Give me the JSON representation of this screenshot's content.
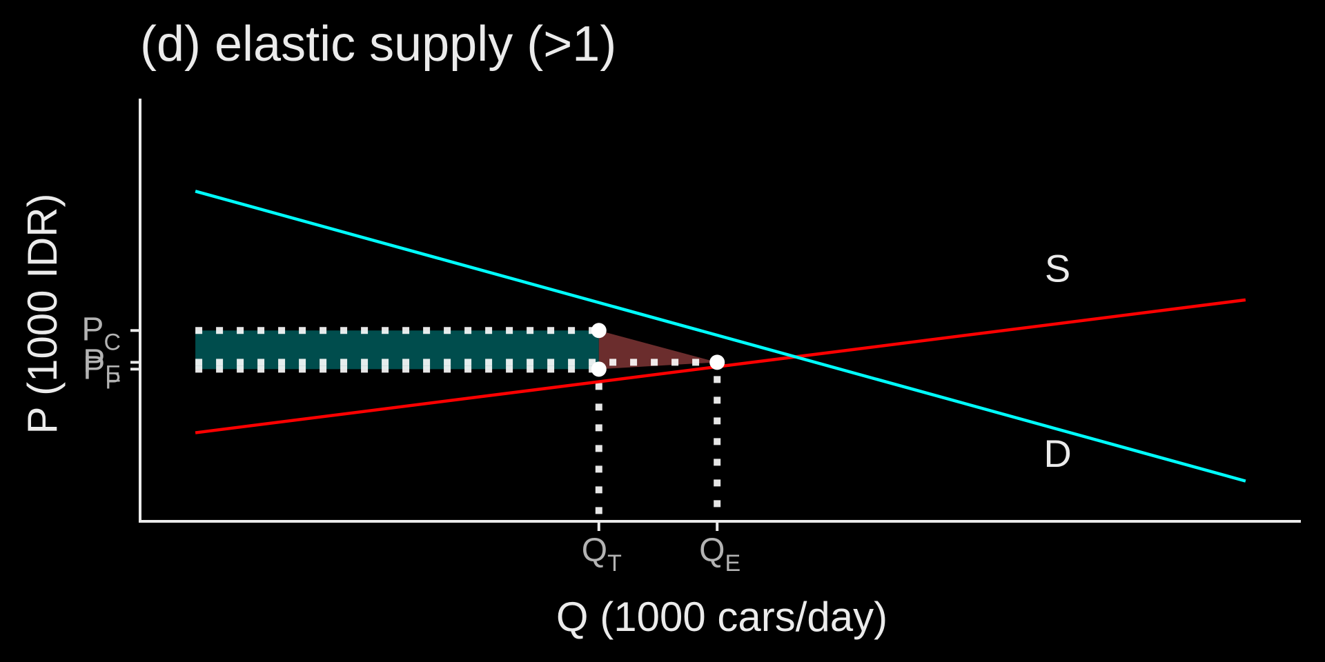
{
  "chart_data": {
    "type": "line",
    "title": "(d) elastic supply (>1)",
    "xlabel": "Q (1000 cars/day)",
    "ylabel": "P (1000 IDR)",
    "xlim": [
      0,
      10.5
    ],
    "ylim": [
      0,
      10.5
    ],
    "grid": false,
    "series": [
      {
        "name": "S",
        "color": "#ff0000",
        "x": [
          0.5,
          10
        ],
        "y": [
          2.2,
          5.5
        ]
      },
      {
        "name": "D",
        "color": "#00ffff",
        "x": [
          0.5,
          10
        ],
        "y": [
          8.2,
          1.0
        ]
      }
    ],
    "x_ticks": [
      {
        "value": 4.15,
        "main": "Q",
        "sub": "T"
      },
      {
        "value": 5.22,
        "main": "Q",
        "sub": "E"
      }
    ],
    "y_ticks": [
      {
        "value": 4.74,
        "main": "P",
        "sub": "C"
      },
      {
        "value": 3.95,
        "main": "P",
        "sub": "E"
      },
      {
        "value": 3.78,
        "main": "P",
        "sub": "P"
      }
    ],
    "points": [
      {
        "x": 4.15,
        "y": 4.74
      },
      {
        "x": 4.15,
        "y": 3.78
      },
      {
        "x": 5.22,
        "y": 3.95
      }
    ],
    "tax_revenue_area": {
      "x": [
        0.5,
        4.15
      ],
      "y": [
        3.78,
        4.74
      ],
      "color": "#004d4d"
    },
    "deadweight_loss_area": {
      "vertices": [
        [
          4.15,
          4.74
        ],
        [
          4.15,
          3.78
        ],
        [
          5.22,
          3.95
        ]
      ],
      "color": "#6b2d2d"
    },
    "curve_labels": [
      {
        "text": "S",
        "x": 8.3,
        "y": 5.95
      },
      {
        "text": "D",
        "x": 8.3,
        "y": 1.35
      }
    ],
    "colors": {
      "background": "#000000",
      "axis": "#ebebeb",
      "guide": "#ffffff"
    }
  }
}
